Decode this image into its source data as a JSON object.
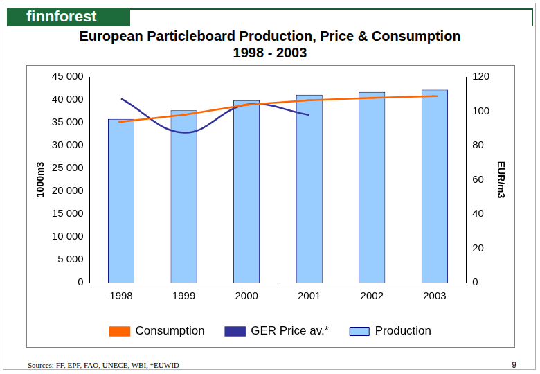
{
  "brand": "finnforest",
  "source": "Sources: FF, EPF, FAO, UNECE, WBI, *EUWID",
  "page_number": 9,
  "chart_data": {
    "type": "bar",
    "title": "European Particleboard Production, Price & Consumption",
    "subtitle": "1998 - 2003",
    "categories": [
      "1998",
      "1999",
      "2000",
      "2001",
      "2002",
      "2003"
    ],
    "y_label": "1000m3",
    "y2_label": "EUR/m3",
    "ylim": [
      0,
      45000
    ],
    "yticks": [
      0,
      {
        "value": 5000,
        "label": "5 000"
      },
      {
        "value": 10000,
        "label": "10 000"
      },
      {
        "value": 15000,
        "label": "15 000"
      },
      {
        "value": 20000,
        "label": "20 000"
      },
      {
        "value": 25000,
        "label": "25 000"
      },
      {
        "value": 30000,
        "label": "30 000"
      },
      {
        "value": 35000,
        "label": "35 000"
      },
      {
        "value": 40000,
        "label": "40 000"
      },
      {
        "value": 45000,
        "label": "45 000"
      }
    ],
    "y2lim": [
      0,
      120
    ],
    "y2ticks": [
      0,
      20,
      40,
      60,
      80,
      100,
      120
    ],
    "grid": false,
    "legend": "bottom",
    "series": [
      {
        "name": "Production",
        "type": "bar",
        "color": "#99ccff",
        "values": [
          35800,
          37700,
          39900,
          41100,
          41700,
          42200
        ]
      },
      {
        "name": "Consumption",
        "type": "line",
        "color": "#ff6600",
        "marker": "dash",
        "line_style": "solid",
        "values": [
          35200,
          36700,
          38900,
          39900,
          40400,
          40800
        ]
      },
      {
        "name": "GER Price av.*",
        "type": "line",
        "axis": "y2",
        "color": "#333399",
        "marker": "none",
        "line_style": "solid",
        "values": [
          107.3,
          87.5,
          103.8,
          97.8,
          null,
          null
        ]
      }
    ]
  }
}
